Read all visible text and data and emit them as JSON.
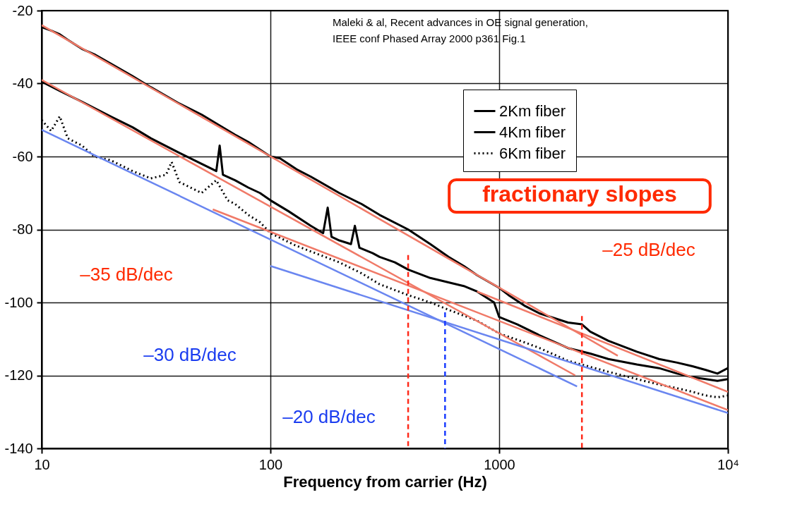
{
  "chart_data": {
    "type": "line",
    "xlabel": "Frequency from carrier (Hz)",
    "log": "x",
    "grid": true,
    "legend": "top right",
    "xlim": [
      10,
      10000
    ],
    "xticks": [
      10,
      100,
      1000,
      {
        "value": 10000,
        "label": "10⁴"
      }
    ],
    "ylim": [
      -140,
      -20
    ],
    "yticks": [
      -140,
      -120,
      -100,
      -80,
      -60,
      -40,
      -20
    ],
    "series": [
      {
        "name": "2Km fiber",
        "color": "#000000",
        "line_style": "solid",
        "x": [
          10,
          11,
          12,
          13,
          15,
          17,
          20,
          25,
          30,
          40,
          50,
          60,
          70,
          80,
          100,
          110,
          130,
          150,
          200,
          250,
          300,
          400,
          500,
          600,
          700,
          800,
          1000,
          1100,
          1300,
          1500,
          2000,
          2300,
          2500,
          3000,
          4000,
          5000,
          6000,
          7000,
          8000,
          9000,
          10000
        ],
        "values": [
          -24.5,
          -25.5,
          -26.5,
          -28,
          -30.5,
          -32,
          -34.5,
          -38,
          -41,
          -45.5,
          -48.5,
          -51.5,
          -54,
          -56,
          -60,
          -60.5,
          -63.5,
          -65.5,
          -70,
          -73,
          -76,
          -80,
          -84,
          -87.5,
          -90,
          -92.5,
          -96,
          -98,
          -101,
          -103,
          -105.5,
          -106,
          -108,
          -110.5,
          -113.5,
          -115.5,
          -116.5,
          -117.5,
          -118.5,
          -119.5,
          -118
        ]
      },
      {
        "name": "4Km fiber",
        "color": "#000000",
        "line_style": "solid",
        "x": [
          10,
          12,
          15,
          20,
          25,
          30,
          40,
          50,
          58,
          60,
          62,
          70,
          80,
          90,
          100,
          120,
          150,
          170,
          178,
          185,
          200,
          225,
          234,
          245,
          280,
          300,
          350,
          400,
          500,
          600,
          700,
          800,
          950,
          1000,
          1200,
          1500,
          2000,
          2500,
          3000,
          4000,
          5000,
          6000,
          7000,
          8000,
          9000,
          10000
        ],
        "values": [
          -39.5,
          -42,
          -45,
          -49,
          -52,
          -55,
          -59,
          -62,
          -64,
          -57,
          -65,
          -66.5,
          -68.5,
          -70,
          -72,
          -75,
          -79,
          -81,
          -74,
          -82,
          -83,
          -84,
          -79,
          -85,
          -86.5,
          -87.5,
          -89,
          -91,
          -93.3,
          -94.5,
          -95.5,
          -97,
          -100,
          -104,
          -106,
          -109,
          -112.5,
          -114,
          -115.5,
          -117,
          -118,
          -119.5,
          -120.5,
          -121,
          -121.5,
          -121
        ]
      },
      {
        "name": "6Km fiber",
        "color": "#000000",
        "line_style": "dotted",
        "x": [
          10,
          11,
          12,
          13,
          15,
          17,
          20,
          25,
          30,
          35,
          37,
          40,
          50,
          58,
          65,
          70,
          80,
          90,
          100,
          128,
          150,
          200,
          250,
          300,
          400,
          500,
          600,
          800,
          1000,
          1300,
          1500,
          2000,
          3000,
          4000,
          5000,
          6000,
          7000,
          8000,
          9000,
          10000
        ],
        "values": [
          -50,
          -53,
          -49,
          -55,
          -57,
          -60,
          -61,
          -64,
          -66,
          -65,
          -61.5,
          -67,
          -70,
          -66.5,
          -72,
          -73,
          -76,
          -78,
          -81,
          -84.3,
          -86,
          -89,
          -92,
          -95,
          -98,
          -100,
          -102,
          -105,
          -108.5,
          -111,
          -112.5,
          -116,
          -119,
          -121,
          -122.5,
          -123.5,
          -124.5,
          -125.5,
          -126,
          -125.5
        ]
      },
      {
        "color": "#f07a68",
        "line_style": "solid",
        "x": [
          10,
          3300
        ],
        "values": [
          -24,
          -114.6
        ]
      },
      {
        "color": "#f07a68",
        "line_style": "solid",
        "x": [
          10,
          2150
        ],
        "values": [
          -39,
          -120
        ]
      },
      {
        "color": "#f07a68",
        "line_style": "solid",
        "x": [
          56,
          10000
        ],
        "values": [
          -74.5,
          -129.5
        ]
      },
      {
        "color": "#f07a68",
        "line_style": "solid",
        "x": [
          800,
          10000
        ],
        "values": [
          -97,
          -124.5
        ]
      },
      {
        "color": "#6a86f0",
        "line_style": "solid",
        "x": [
          10,
          2190
        ],
        "values": [
          -52.7,
          -123
        ]
      },
      {
        "color": "#6a86f0",
        "line_style": "solid",
        "x": [
          100,
          10000
        ],
        "values": [
          -90,
          -130.3
        ]
      },
      {
        "color": "#ff2a1a",
        "line_style": "dashed",
        "x": [
          400,
          400
        ],
        "values": [
          -87,
          -140
        ]
      },
      {
        "color": "#1a3cff",
        "line_style": "dashed",
        "x": [
          580,
          580
        ],
        "values": [
          -102.7,
          -140
        ]
      },
      {
        "color": "#ff2a1a",
        "line_style": "dashed",
        "x": [
          2300,
          2300
        ],
        "values": [
          -103.7,
          -140
        ]
      }
    ],
    "annotations": [
      "Maleki & al, Recent advances in OE signal generation,\nIEEE conf Phased Array 2000 p361 Fig.1",
      "fractionary slopes",
      "–35 dB/dec",
      "–30 dB/dec",
      "–20 dB/dec",
      "–25 dB/dec"
    ]
  }
}
